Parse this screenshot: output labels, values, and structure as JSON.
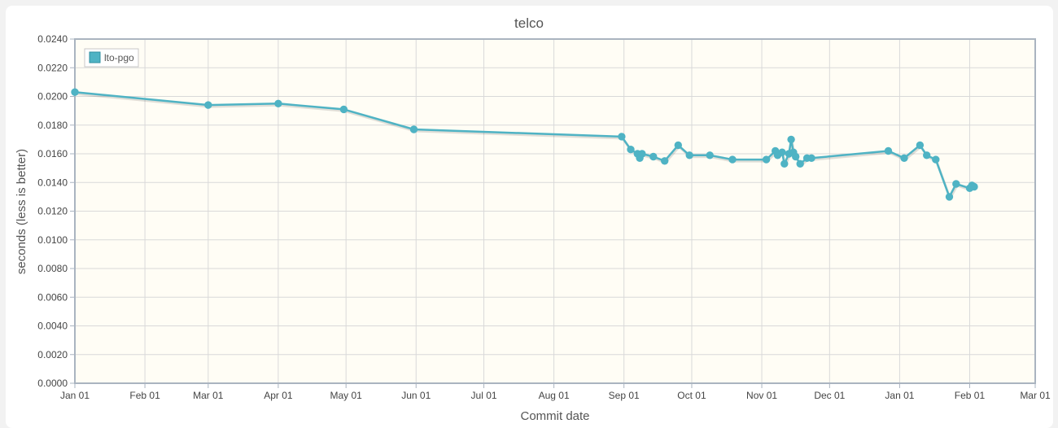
{
  "chart_data": {
    "type": "line",
    "title": "telco",
    "xlabel": "Commit date",
    "ylabel": "seconds (less is better)",
    "x_ticks": [
      "Jan 01",
      "Feb 01",
      "Mar 01",
      "Apr 01",
      "May 01",
      "Jun 01",
      "Jul 01",
      "Aug 01",
      "Sep 01",
      "Oct 01",
      "Nov 01",
      "Dec 01",
      "Jan 01",
      "Feb 01",
      "Mar 01"
    ],
    "x_tick_dates": [
      "2019-01-01",
      "2019-02-01",
      "2019-03-01",
      "2019-04-01",
      "2019-05-01",
      "2019-06-01",
      "2019-07-01",
      "2019-08-01",
      "2019-09-01",
      "2019-10-01",
      "2019-11-01",
      "2019-12-01",
      "2020-01-01",
      "2020-02-01",
      "2020-03-01"
    ],
    "y_ticks": [
      "0.0000",
      "0.0020",
      "0.0040",
      "0.0060",
      "0.0080",
      "0.0100",
      "0.0120",
      "0.0140",
      "0.0160",
      "0.0180",
      "0.0200",
      "0.0220",
      "0.0240"
    ],
    "xlim": [
      "2019-01-01",
      "2020-03-01"
    ],
    "ylim": [
      0,
      0.024
    ],
    "grid": true,
    "legend_position": "top-left",
    "series": [
      {
        "name": "lto-pgo",
        "color": "#4fb3c4",
        "points": [
          {
            "x": "2019-01-01",
            "y": 0.0203
          },
          {
            "x": "2019-03-01",
            "y": 0.0194
          },
          {
            "x": "2019-04-01",
            "y": 0.0195
          },
          {
            "x": "2019-04-30",
            "y": 0.0191
          },
          {
            "x": "2019-05-31",
            "y": 0.0177
          },
          {
            "x": "2019-08-31",
            "y": 0.0172
          },
          {
            "x": "2019-09-04",
            "y": 0.0163
          },
          {
            "x": "2019-09-07",
            "y": 0.016
          },
          {
            "x": "2019-09-08",
            "y": 0.0157
          },
          {
            "x": "2019-09-09",
            "y": 0.016
          },
          {
            "x": "2019-09-14",
            "y": 0.0158
          },
          {
            "x": "2019-09-19",
            "y": 0.0155
          },
          {
            "x": "2019-09-25",
            "y": 0.0166
          },
          {
            "x": "2019-09-30",
            "y": 0.0159
          },
          {
            "x": "2019-10-09",
            "y": 0.0159
          },
          {
            "x": "2019-10-19",
            "y": 0.0156
          },
          {
            "x": "2019-11-03",
            "y": 0.0156
          },
          {
            "x": "2019-11-07",
            "y": 0.0162
          },
          {
            "x": "2019-11-08",
            "y": 0.0159
          },
          {
            "x": "2019-11-10",
            "y": 0.0161
          },
          {
            "x": "2019-11-11",
            "y": 0.0153
          },
          {
            "x": "2019-11-13",
            "y": 0.016
          },
          {
            "x": "2019-11-14",
            "y": 0.017
          },
          {
            "x": "2019-11-15",
            "y": 0.0161
          },
          {
            "x": "2019-11-16",
            "y": 0.0158
          },
          {
            "x": "2019-11-18",
            "y": 0.0153
          },
          {
            "x": "2019-11-21",
            "y": 0.0157
          },
          {
            "x": "2019-11-23",
            "y": 0.0157
          },
          {
            "x": "2019-12-27",
            "y": 0.0162
          },
          {
            "x": "2020-01-03",
            "y": 0.0157
          },
          {
            "x": "2020-01-10",
            "y": 0.0166
          },
          {
            "x": "2020-01-13",
            "y": 0.0159
          },
          {
            "x": "2020-01-17",
            "y": 0.0156
          },
          {
            "x": "2020-01-23",
            "y": 0.013
          },
          {
            "x": "2020-01-26",
            "y": 0.0139
          },
          {
            "x": "2020-02-01",
            "y": 0.0136
          },
          {
            "x": "2020-02-02",
            "y": 0.0138
          },
          {
            "x": "2020-02-03",
            "y": 0.0137
          }
        ]
      }
    ]
  }
}
